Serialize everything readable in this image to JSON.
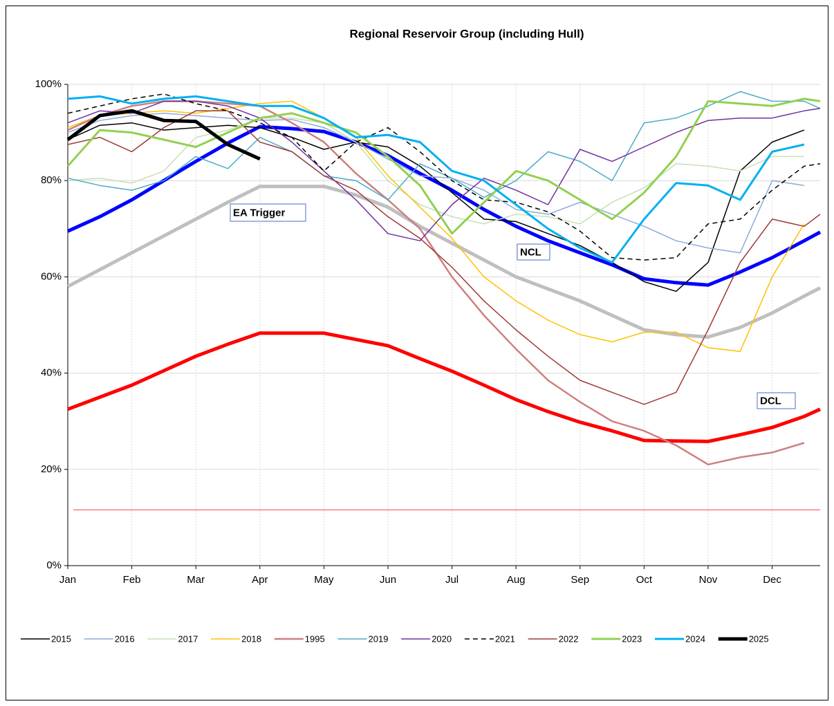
{
  "chart_data": {
    "type": "line",
    "title": "Regional Reservoir Group (including Hull)",
    "x": [
      0,
      0.5,
      1,
      1.5,
      2,
      2.5,
      3,
      3.5,
      4,
      4.5,
      5,
      5.5,
      6,
      6.5,
      7,
      7.5,
      8,
      8.5,
      9,
      9.5,
      10,
      10.5,
      11,
      11.5,
      11.75
    ],
    "xlim": [
      0,
      11.75
    ],
    "xticks": [
      {
        "value": 0,
        "label": "Jan"
      },
      {
        "value": 1,
        "label": "Feb"
      },
      {
        "value": 2,
        "label": "Mar"
      },
      {
        "value": 3,
        "label": "Apr"
      },
      {
        "value": 4,
        "label": "May"
      },
      {
        "value": 5,
        "label": "Jun"
      },
      {
        "value": 6,
        "label": "Jul"
      },
      {
        "value": 7,
        "label": "Aug"
      },
      {
        "value": 8,
        "label": "Sep"
      },
      {
        "value": 9,
        "label": "Oct"
      },
      {
        "value": 10,
        "label": "Nov"
      },
      {
        "value": 11,
        "label": "Dec"
      }
    ],
    "ylim": [
      0,
      100
    ],
    "yticks": [
      {
        "value": 0,
        "label": "0%"
      },
      {
        "value": 20,
        "label": "20%"
      },
      {
        "value": 40,
        "label": "40%"
      },
      {
        "value": 60,
        "label": "60%"
      },
      {
        "value": 80,
        "label": "80%"
      },
      {
        "value": 100,
        "label": "100%"
      }
    ],
    "grid": true,
    "legend": "bottom",
    "control_curves": [
      {
        "name": "EA Trigger",
        "color": "#bfbfbf",
        "width": 5,
        "values": [
          58,
          61.5,
          65,
          68.5,
          72,
          75.5,
          78.8,
          78.8,
          78.8,
          77,
          74.5,
          70.5,
          67,
          63.5,
          60,
          57.5,
          55,
          52,
          49,
          48,
          47.5,
          49.5,
          52.5,
          56,
          57.7
        ]
      },
      {
        "name": "NCL",
        "color": "#0000ff",
        "width": 5,
        "values": [
          69.5,
          72.5,
          76,
          80,
          84,
          87.8,
          91.2,
          90.8,
          90.2,
          88,
          85.2,
          81.5,
          78,
          74,
          70.5,
          67.5,
          65,
          62.5,
          59.6,
          58.8,
          58.3,
          61,
          64,
          67.5,
          69.3
        ]
      },
      {
        "name": "DCL",
        "color": "#ff0000",
        "width": 5,
        "values": [
          32.5,
          35,
          37.5,
          40.5,
          43.5,
          46,
          48.3,
          48.3,
          48.3,
          47,
          45.7,
          43,
          40.4,
          37.5,
          34.5,
          32,
          29.8,
          28,
          26,
          25.9,
          25.8,
          27.2,
          28.7,
          31,
          32.5
        ]
      }
    ],
    "reference_lines": [
      {
        "value": 11.6,
        "color": "#ff0000"
      }
    ],
    "series": [
      {
        "name": "2015",
        "color": "#000000",
        "width": 1.5,
        "values": [
          88.5,
          91.5,
          92,
          90.5,
          91,
          91.5,
          91,
          89,
          86.5,
          88,
          87,
          83,
          77.5,
          72,
          71.5,
          69,
          66.5,
          63,
          59,
          57,
          63,
          82,
          88,
          90.5,
          null
        ]
      },
      {
        "name": "2016",
        "color": "#8eaadb",
        "width": 1.5,
        "values": [
          90,
          92.5,
          93.5,
          94,
          93.5,
          93,
          92.5,
          92.7,
          91,
          88,
          84.5,
          81,
          80.5,
          78,
          74,
          73,
          75.5,
          73,
          70.5,
          67.5,
          66,
          65,
          80,
          79,
          null
        ]
      },
      {
        "name": "2017",
        "color": "#c5e0b4",
        "width": 1.5,
        "values": [
          80,
          80.5,
          79.5,
          82,
          89,
          90.5,
          93,
          93,
          92,
          88,
          80,
          75,
          72.5,
          71,
          73,
          72.5,
          71,
          75.5,
          78.5,
          83.5,
          83,
          82,
          85,
          85,
          null
        ]
      },
      {
        "name": "2018",
        "color": "#ffc000",
        "width": 1.5,
        "values": [
          91,
          93.5,
          94,
          94.5,
          94,
          95,
          96,
          96.5,
          93,
          89,
          81,
          74.5,
          68,
          60,
          55,
          51,
          48,
          46.5,
          48.5,
          48.5,
          45.3,
          44.5,
          60,
          71,
          null
        ]
      },
      {
        "name": "1995",
        "color": "#cd7f7f",
        "width": 2.5,
        "values": [
          90.5,
          93.5,
          95.5,
          96.5,
          96.5,
          96,
          95.5,
          92,
          88,
          81.5,
          76,
          70,
          60,
          52,
          45,
          38.5,
          34,
          30,
          28,
          25,
          21,
          22.5,
          23.5,
          25.5,
          null
        ]
      },
      {
        "name": "2019",
        "color": "#4bacc6",
        "width": 1.5,
        "values": [
          80.5,
          79,
          78,
          80,
          85,
          82.5,
          89,
          86,
          81,
          80,
          76,
          83.5,
          80.5,
          76.5,
          80,
          86,
          84,
          80,
          92,
          93,
          95.5,
          98.5,
          96.5,
          96.5,
          95
        ]
      },
      {
        "name": "2020",
        "color": "#7030a0",
        "width": 1.5,
        "values": [
          92,
          94.5,
          94,
          96.5,
          96.5,
          95.5,
          93,
          88,
          82,
          76,
          69,
          67.5,
          75,
          80.5,
          78,
          75,
          86.5,
          84,
          87,
          90,
          92.5,
          93,
          93,
          94.5,
          95
        ]
      },
      {
        "name": "2021",
        "color": "#000000",
        "width": 1.5,
        "dash": true,
        "values": [
          94,
          95.5,
          97,
          98,
          96,
          94.5,
          92,
          89,
          82,
          88,
          91,
          86,
          80,
          76,
          75.5,
          73.5,
          69.5,
          64,
          63.5,
          64,
          71,
          72,
          78,
          83,
          83.5
        ]
      },
      {
        "name": "2022",
        "color": "#9e3a38",
        "width": 1.5,
        "values": [
          87.5,
          89,
          86,
          91,
          94.5,
          94.5,
          88,
          86,
          81,
          78,
          72.5,
          68,
          62,
          55,
          49,
          43.5,
          38.5,
          36,
          33.5,
          36,
          49,
          63,
          72,
          70.5,
          73
        ]
      },
      {
        "name": "2023",
        "color": "#92d050",
        "width": 3,
        "values": [
          83,
          90.5,
          90,
          88.5,
          87,
          90,
          93,
          94,
          92,
          90,
          85,
          79,
          69,
          75.5,
          82,
          80,
          76,
          72,
          77.5,
          85,
          96.5,
          96,
          95.5,
          97,
          96.5
        ]
      },
      {
        "name": "2024",
        "color": "#00b0f0",
        "width": 3,
        "values": [
          97,
          97.5,
          96,
          97,
          97.5,
          96.5,
          95.5,
          95.5,
          93,
          89,
          89.5,
          88,
          82,
          80,
          75,
          70,
          66,
          63,
          72,
          79.5,
          79,
          76,
          86,
          87.5,
          null
        ]
      },
      {
        "name": "2025",
        "color": "#000000",
        "width": 5,
        "values": [
          88.5,
          93.5,
          94.5,
          92.5,
          92.3,
          87.5,
          84.5,
          null,
          null,
          null,
          null,
          null,
          null,
          null,
          null,
          null,
          null,
          null,
          null,
          null,
          null,
          null,
          null,
          null,
          null
        ]
      }
    ]
  }
}
